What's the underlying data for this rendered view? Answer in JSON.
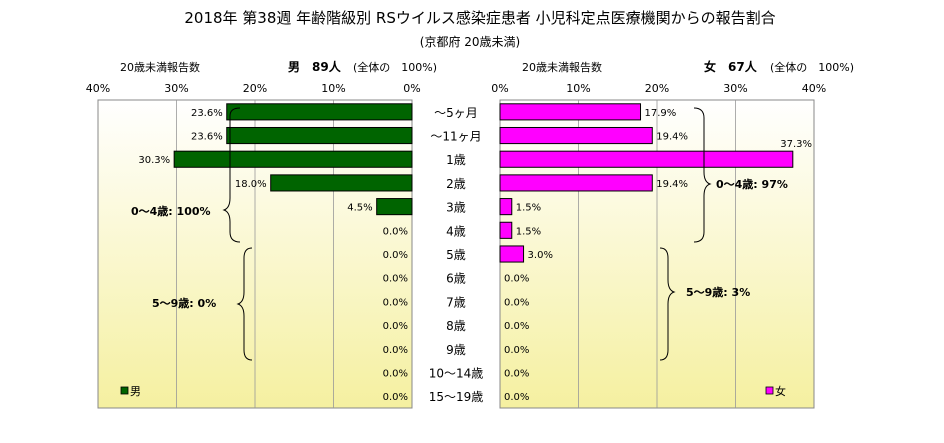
{
  "title": "2018年 第38週 年齢階級別 RSウイルス感染症患者 小児科定点医療機関からの報告割合",
  "subtitle": "(京都府 20歳未満)",
  "colors": {
    "male": "#006400",
    "female": "#ff00ff",
    "plot_bg_top": "#ffffff",
    "plot_bg_bottom": "#f5f0a0"
  },
  "chart_data": [
    {
      "type": "bar",
      "orientation": "horizontal",
      "direction": "right-to-left",
      "header_left": "20歳未満報告数",
      "header_right": "男　89人",
      "header_note": "(全体の　100%)",
      "xlim": [
        0,
        40
      ],
      "x_ticks": [
        "40%",
        "30%",
        "20%",
        "10%",
        "0%"
      ],
      "categories": [
        "～5ヶ月",
        "～11ヶ月",
        "1歳",
        "2歳",
        "3歳",
        "4歳",
        "5歳",
        "6歳",
        "7歳",
        "8歳",
        "9歳",
        "10～14歳",
        "15～19歳"
      ],
      "values": [
        23.6,
        23.6,
        30.3,
        18.0,
        4.5,
        0.0,
        0.0,
        0.0,
        0.0,
        0.0,
        0.0,
        0.0,
        0.0
      ],
      "value_labels": [
        "23.6%",
        "23.6%",
        "30.3%",
        "18.0%",
        "4.5%",
        "0.0%",
        "0.0%",
        "0.0%",
        "0.0%",
        "0.0%",
        "0.0%",
        "0.0%",
        "0.0%"
      ],
      "legend": "男",
      "brackets": [
        "0～4歳: 100%",
        "5～9歳: 0%"
      ]
    },
    {
      "type": "bar",
      "orientation": "horizontal",
      "direction": "left-to-right",
      "header_left": "20歳未満報告数",
      "header_right": "女　67人",
      "header_note": "(全体の　100%)",
      "xlim": [
        0,
        40
      ],
      "x_ticks": [
        "0%",
        "10%",
        "20%",
        "30%",
        "40%"
      ],
      "categories": [
        "～5ヶ月",
        "～11ヶ月",
        "1歳",
        "2歳",
        "3歳",
        "4歳",
        "5歳",
        "6歳",
        "7歳",
        "8歳",
        "9歳",
        "10～14歳",
        "15～19歳"
      ],
      "values": [
        17.9,
        19.4,
        37.3,
        19.4,
        1.5,
        1.5,
        3.0,
        0.0,
        0.0,
        0.0,
        0.0,
        0.0,
        0.0
      ],
      "value_labels": [
        "17.9%",
        "19.4%",
        "37.3%",
        "19.4%",
        "1.5%",
        "1.5%",
        "3.0%",
        "0.0%",
        "0.0%",
        "0.0%",
        "0.0%",
        "0.0%",
        "0.0%"
      ],
      "legend": "女",
      "brackets": [
        "0～4歳: 97%",
        "5～9歳: 3%"
      ]
    }
  ]
}
